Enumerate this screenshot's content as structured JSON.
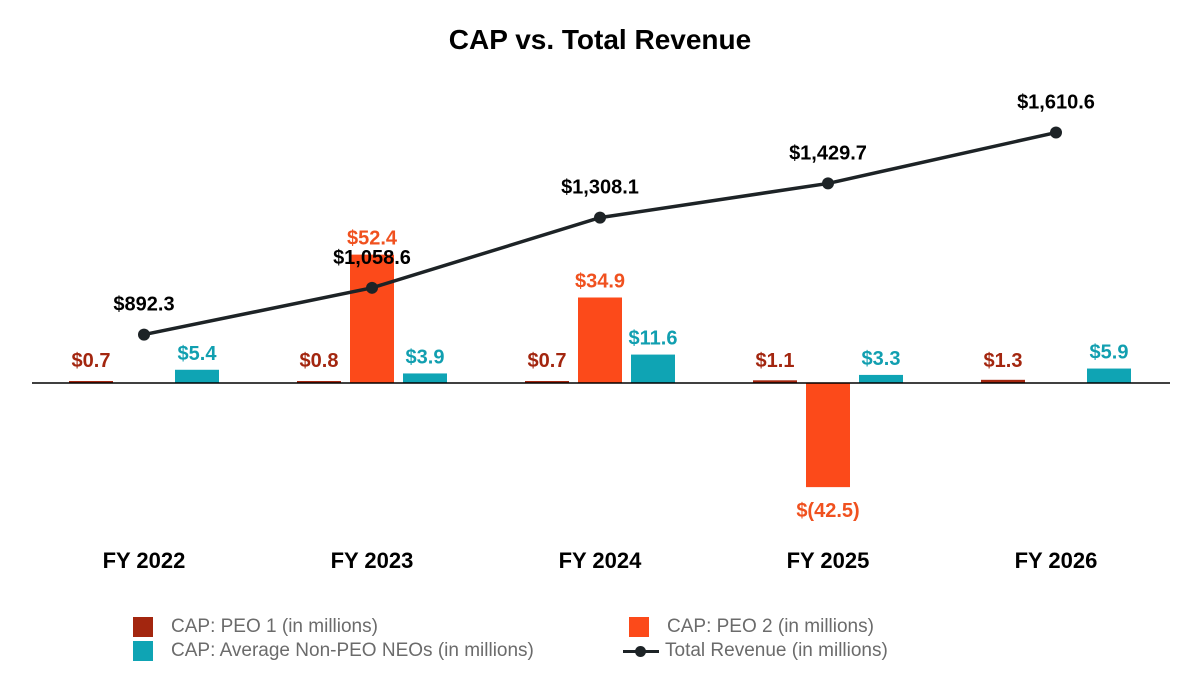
{
  "chart_data": {
    "type": "bar",
    "title": "CAP vs. Total Revenue",
    "categories": [
      "FY 2022",
      "FY 2023",
      "FY 2024",
      "FY 2025",
      "FY 2026"
    ],
    "series": [
      {
        "name": "CAP: PEO 1 (in millions)",
        "kind": "bar",
        "color": "#a3260f",
        "values": [
          0.7,
          0.8,
          0.7,
          1.1,
          1.3
        ],
        "labels": [
          "$0.7",
          "$0.8",
          "$0.7",
          "$1.1",
          "$1.3"
        ]
      },
      {
        "name": "CAP: PEO 2 (in millions)",
        "kind": "bar",
        "color": "#fc4a1a",
        "values": [
          null,
          52.4,
          34.9,
          -42.5,
          null
        ],
        "labels": [
          "",
          "$52.4",
          "$34.9",
          "$(42.5)",
          ""
        ]
      },
      {
        "name": "CAP: Average Non-PEO NEOs (in millions)",
        "kind": "bar",
        "color": "#0fa4b4",
        "values": [
          5.4,
          3.9,
          11.6,
          3.3,
          5.9
        ],
        "labels": [
          "$5.4",
          "$3.9",
          "$11.6",
          "$3.3",
          "$5.9"
        ]
      },
      {
        "name": "Total Revenue (in millions)",
        "kind": "line",
        "color": "#1d2326",
        "values": [
          892.3,
          1058.6,
          1308.1,
          1429.7,
          1610.6
        ],
        "labels": [
          "$892.3",
          "$1,058.6",
          "$1,308.1",
          "$1,429.7",
          "$1,610.6"
        ]
      }
    ],
    "grid": false,
    "legend_position": "bottom"
  }
}
